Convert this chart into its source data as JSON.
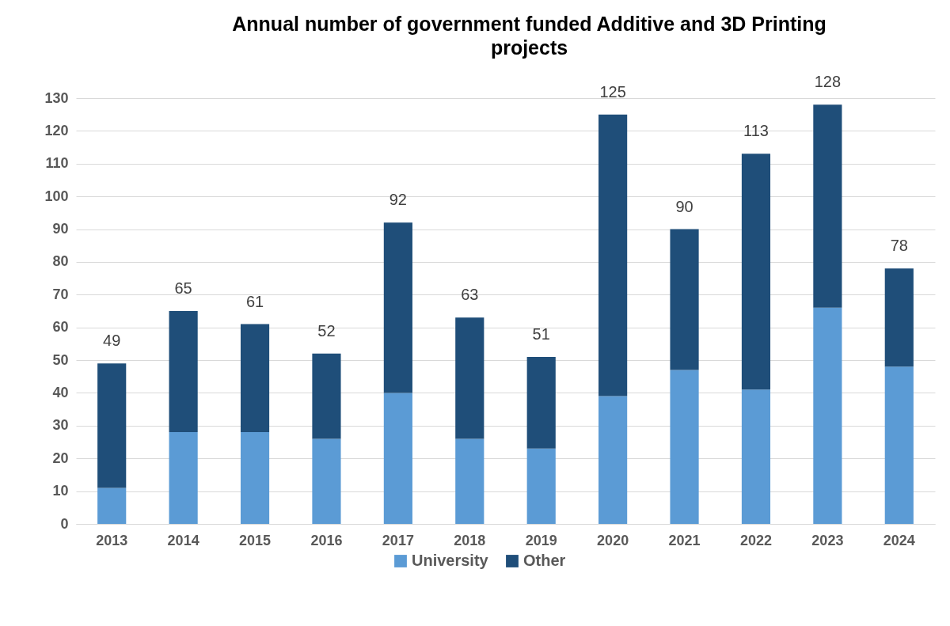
{
  "chart_data": {
    "type": "bar",
    "title": "Annual number of government funded Additive and 3D Printing projects",
    "categories": [
      "2013",
      "2014",
      "2015",
      "2016",
      "2017",
      "2018",
      "2019",
      "2020",
      "2021",
      "2022",
      "2023",
      "2024"
    ],
    "stacked": true,
    "series": [
      {
        "name": "University",
        "color": "#5b9bd5",
        "values": [
          11,
          28,
          28,
          26,
          40,
          26,
          23,
          39,
          47,
          41,
          66,
          48
        ]
      },
      {
        "name": "Other",
        "color": "#1f4e79",
        "values": [
          38,
          37,
          33,
          26,
          52,
          37,
          28,
          86,
          43,
          72,
          62,
          30
        ]
      }
    ],
    "totals": [
      "49",
      "65",
      "61",
      "52",
      "92",
      "63",
      "51",
      "125",
      "90",
      "113",
      "128",
      "78"
    ],
    "ylim": [
      0,
      130
    ],
    "yticks": [
      0,
      10,
      20,
      30,
      40,
      50,
      60,
      70,
      80,
      90,
      100,
      110,
      120,
      130
    ],
    "grid": "y",
    "legend": "bottom"
  }
}
